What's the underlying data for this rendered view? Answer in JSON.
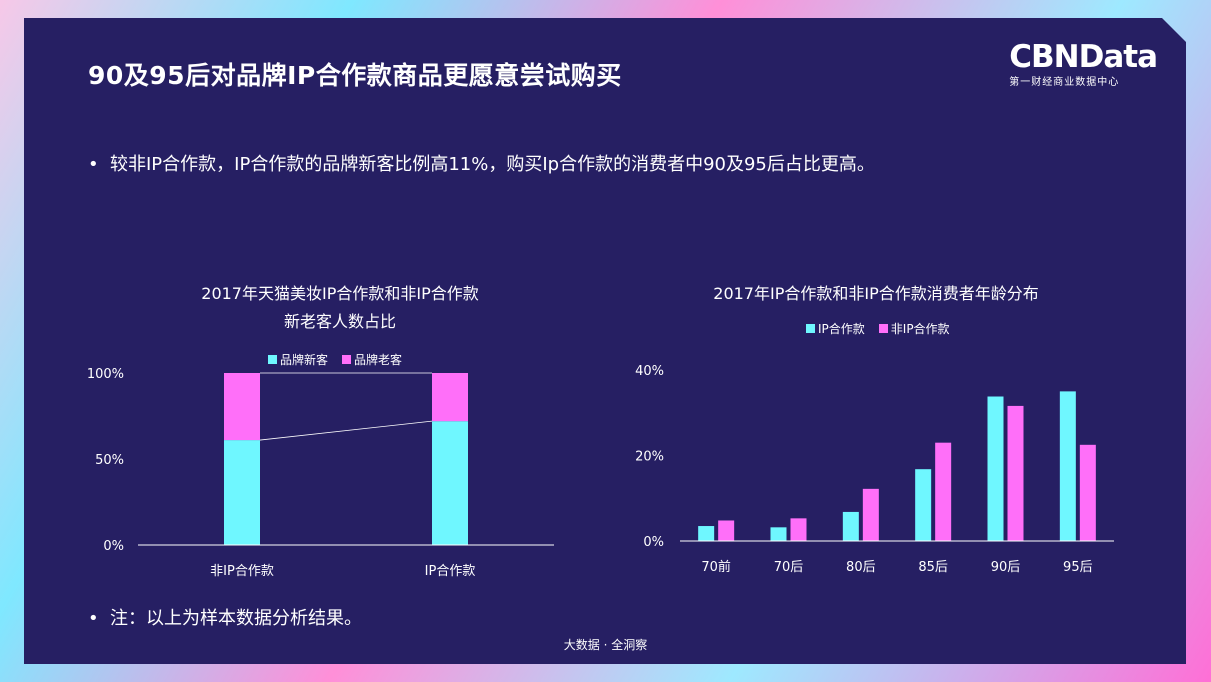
{
  "header": {
    "title": "90及95后对品牌IP合作款商品更愿意尝试购买",
    "logo_main": "CBNData",
    "logo_sub": "第一财经商业数据中心"
  },
  "bullets": {
    "dot": "•",
    "first": "较非IP合作款，IP合作款的品牌新客比例高11%，购买Ip合作款的消费者中90及95后占比更高。",
    "note": "注：以上为样本数据分析结果。"
  },
  "footer": {
    "text": "大数据 · 全洞察"
  },
  "colors": {
    "cyan": "#6ff7ff",
    "magenta": "#ff6ff9",
    "panel": "#261f63"
  },
  "chart_data": [
    {
      "type": "bar",
      "stacked": true,
      "title_line1": "2017年天猫美妆IP合作款和非IP合作款",
      "title_line2": "新老客人数占比",
      "categories": [
        "非IP合作款",
        "IP合作款"
      ],
      "series": [
        {
          "name": "品牌新客",
          "color": "#6ff7ff",
          "values": [
            61,
            72
          ]
        },
        {
          "name": "品牌老客",
          "color": "#ff6ff9",
          "values": [
            39,
            28
          ]
        }
      ],
      "yticks": [
        "0%",
        "50%",
        "100%"
      ],
      "ylim": [
        0,
        100
      ],
      "legend": "top-center",
      "series_lines": true
    },
    {
      "type": "bar",
      "title": "2017年IP合作款和非IP合作款消费者年龄分布",
      "categories": [
        "70前",
        "70后",
        "80后",
        "85后",
        "90后",
        "95后"
      ],
      "series": [
        {
          "name": "IP合作款",
          "color": "#6ff7ff",
          "values": [
            3.5,
            3.2,
            6.8,
            16.8,
            33.8,
            35
          ]
        },
        {
          "name": "非IP合作款",
          "color": "#ff6ff9",
          "values": [
            4.8,
            5.3,
            12.2,
            23,
            31.6,
            22.5
          ]
        }
      ],
      "yticks": [
        "0%",
        "20%",
        "40%"
      ],
      "ylim": [
        0,
        40
      ],
      "legend": "top-center"
    }
  ]
}
